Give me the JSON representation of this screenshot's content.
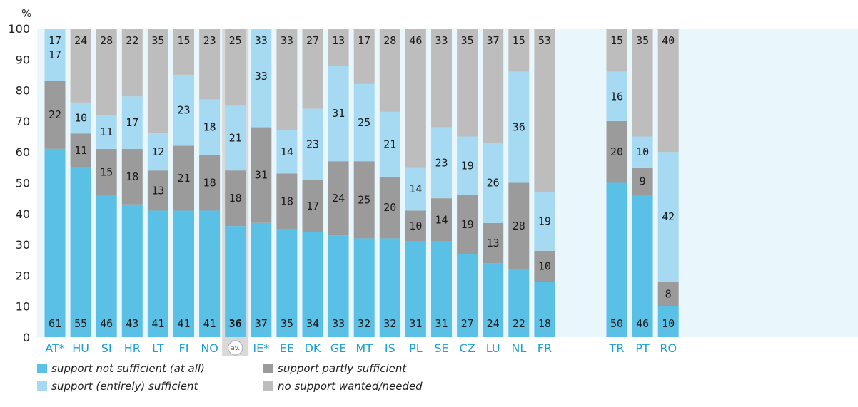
{
  "chart_data": {
    "type": "bar",
    "stacked": true,
    "ylabel": "%",
    "ylim": [
      0,
      100
    ],
    "yticks": [
      "0",
      "10",
      "20",
      "30",
      "40",
      "50",
      "60",
      "70",
      "80",
      "90",
      "100"
    ],
    "grid": false,
    "legend_position": "bottom-left",
    "categories": [
      "AT*",
      "HU",
      "SI",
      "HR",
      "LT",
      "FI",
      "NO",
      "av.",
      "IE*",
      "EE",
      "DK",
      "GE",
      "MT",
      "IS",
      "PL",
      "SE",
      "CZ",
      "LU",
      "NL",
      "FR",
      "TR",
      "PT",
      "RO"
    ],
    "highlight_category": "av.",
    "group_break_after": "FR",
    "series": [
      {
        "name": "support not sufficient (at all)",
        "color": "#5bc0e6",
        "values": [
          61,
          55,
          46,
          43,
          41,
          41,
          41,
          36,
          37,
          35,
          34,
          33,
          32,
          32,
          31,
          31,
          27,
          24,
          22,
          18,
          50,
          46,
          10
        ],
        "labels": [
          "61",
          "55",
          "46",
          "43",
          "41",
          "41",
          "41",
          "36",
          "37",
          "35",
          "34",
          "33",
          "32",
          "32",
          "31",
          "31",
          "27",
          "24",
          "22",
          "18",
          "50",
          "46",
          "10"
        ]
      },
      {
        "name": "support partly sufficient",
        "color": "#9b9b9b",
        "values": [
          22,
          11,
          15,
          18,
          13,
          21,
          18,
          18,
          31,
          18,
          17,
          24,
          25,
          20,
          10,
          14,
          19,
          13,
          28,
          10,
          20,
          9,
          8
        ],
        "labels": [
          "22",
          "11",
          "15",
          "18",
          "13",
          "21",
          "18",
          "18",
          "31",
          "18",
          "17",
          "24",
          "25",
          "20",
          "10",
          "14",
          "19",
          "13",
          "28",
          "10",
          "20",
          "9",
          "8"
        ]
      },
      {
        "name": "support (entirely) sufficient",
        "color": "#a6daf2",
        "values": [
          17,
          10,
          11,
          17,
          12,
          23,
          18,
          21,
          33,
          14,
          23,
          31,
          25,
          21,
          14,
          23,
          19,
          26,
          36,
          19,
          16,
          10,
          42
        ],
        "labels": [
          "17",
          "10",
          "11",
          "17",
          "12",
          "23",
          "18",
          "21",
          "33",
          "14",
          "23",
          "31",
          "25",
          "21",
          "14",
          "23",
          "19",
          "26",
          "36",
          "19",
          "16",
          "10",
          "42"
        ]
      },
      {
        "name": "no support wanted/needed",
        "color": "#bdbdbd",
        "values": [
          0,
          24,
          28,
          22,
          35,
          15,
          23,
          25,
          0,
          33,
          27,
          13,
          17,
          28,
          46,
          33,
          35,
          37,
          15,
          53,
          15,
          35,
          40
        ],
        "labels": [
          "",
          "24",
          "28",
          "22",
          "35",
          "15",
          "23",
          "25",
          "",
          "33",
          "27",
          "13",
          "17",
          "28",
          "46",
          "33",
          "35",
          "37",
          "15",
          "53",
          "15",
          "35",
          "40"
        ]
      }
    ],
    "top_labels": [
      "17",
      "",
      "",
      "",
      "",
      "",
      "",
      "",
      "33",
      "",
      "",
      "",
      "",
      "",
      "",
      "",
      "",
      "",
      "",
      "",
      "",
      "",
      ""
    ],
    "legend_order": [
      0,
      1,
      2,
      3
    ]
  },
  "colors": {
    "plot_background": "#e9f6fc",
    "highlight_background": "#d9d9d9"
  }
}
